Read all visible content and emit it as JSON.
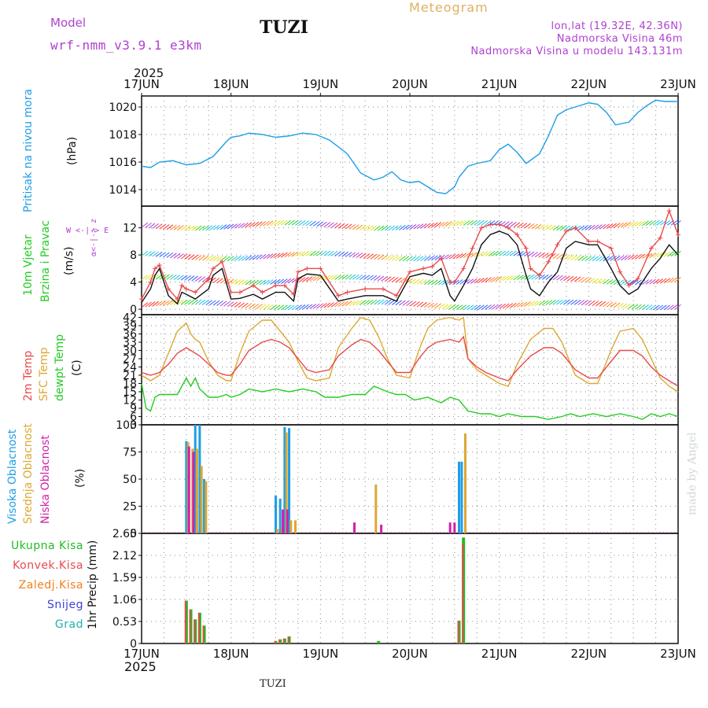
{
  "header": {
    "model_label": "Model",
    "model_name": "wrf-nmm_v3.9.1 e3km",
    "station": "TUZI",
    "meteogram": "Meteogram",
    "lonlat": "lon,lat (19.32E, 42.36N)",
    "elevation": "Nadmorska Visina 46m",
    "model_elevation": "Nadmorska Visina u modelu 143.131m",
    "year_top": "2025",
    "year_bottom": "2025",
    "footer_station": "TUZI",
    "credit": "made by Angel"
  },
  "colors": {
    "pressure": "#1e9ee6",
    "temp2m": "#e84a4a",
    "sfc": "#dca832",
    "dewpt": "#22cc22",
    "high_cloud": "#1e9ee6",
    "mid_cloud": "#dca832",
    "low_cloud": "#d020a8",
    "total_precip": "#22bb22",
    "conv_precip": "#e84a4a",
    "frozen": "#f08020",
    "snow": "#4040d8",
    "grad": "#20b0b0",
    "purple": "#b040d0",
    "wind_green": "#22cc22"
  },
  "chart_data": {
    "type": "meteogram",
    "x_start": "17JUN 2025",
    "x_ticks": [
      "17JUN",
      "18JUN",
      "19JUN",
      "20JUN",
      "21JUN",
      "22JUN",
      "23JUN"
    ],
    "panels": [
      {
        "id": "pressure",
        "type": "line",
        "ylabel": [
          "Pritisak na nivou mora",
          "(hPa)"
        ],
        "ylim": [
          1012.8,
          1020.8
        ],
        "yticks": [
          "1014",
          "1016",
          "1018",
          "1020"
        ],
        "series": [
          {
            "name": "Pritisak",
            "x": [
              0,
              0.1,
              0.2,
              0.35,
              0.5,
              0.65,
              0.8,
              0.95,
              1.0,
              1.1,
              1.2,
              1.35,
              1.5,
              1.65,
              1.8,
              1.95,
              2.1,
              2.3,
              2.45,
              2.6,
              2.7,
              2.8,
              2.9,
              3.0,
              3.1,
              3.2,
              3.3,
              3.4,
              3.5,
              3.55,
              3.65,
              3.75,
              3.9,
              4.0,
              4.1,
              4.2,
              4.3,
              4.45,
              4.55,
              4.65,
              4.75,
              4.9,
              5.0,
              5.1,
              5.2,
              5.3,
              5.45,
              5.55,
              5.65,
              5.75,
              5.85,
              5.9,
              6.0
            ],
            "values": [
              1015.7,
              1015.6,
              1016.0,
              1016.1,
              1015.8,
              1015.9,
              1016.4,
              1017.5,
              1017.8,
              1017.9,
              1018.1,
              1018.0,
              1017.8,
              1017.9,
              1018.1,
              1018.0,
              1017.6,
              1016.6,
              1015.2,
              1014.7,
              1014.9,
              1015.3,
              1014.7,
              1014.5,
              1014.6,
              1014.2,
              1013.8,
              1013.7,
              1014.2,
              1014.9,
              1015.7,
              1015.9,
              1016.1,
              1016.9,
              1017.3,
              1016.7,
              1015.9,
              1016.6,
              1017.9,
              1019.4,
              1019.8,
              1020.1,
              1020.3,
              1020.2,
              1019.6,
              1018.7,
              1018.9,
              1019.6,
              1020.1,
              1020.5,
              1020.4,
              1020.4,
              1020.4
            ]
          }
        ]
      },
      {
        "id": "wind",
        "type": "line+barbs",
        "ylabel": [
          "10m Vjetar",
          "Brzina i Pravac",
          "(m/s)"
        ],
        "ylim": [
          -0.8,
          15.2
        ],
        "yticks": [
          "0",
          "4",
          "8",
          "12"
        ],
        "compass": "W <-|-> E, N S",
        "series": [
          {
            "name": "Brzina (m/s)",
            "x": [
              0,
              0.1,
              0.15,
              0.2,
              0.3,
              0.4,
              0.45,
              0.5,
              0.6,
              0.75,
              0.8,
              0.9,
              1.0,
              1.1,
              1.25,
              1.35,
              1.5,
              1.6,
              1.7,
              1.75,
              1.85,
              2.0,
              2.2,
              2.3,
              2.5,
              2.7,
              2.85,
              3.0,
              3.15,
              3.25,
              3.35,
              3.45,
              3.5,
              3.6,
              3.7,
              3.8,
              3.9,
              4.0,
              4.1,
              4.2,
              4.3,
              4.35,
              4.45,
              4.55,
              4.65,
              4.75,
              4.85,
              5.0,
              5.1,
              5.25,
              5.35,
              5.45,
              5.55,
              5.7,
              5.8,
              5.9,
              6.0
            ],
            "values": [
              1,
              3,
              5,
              6,
              2,
              0.8,
              2.5,
              2.2,
              1.5,
              3,
              5,
              6,
              1.5,
              1.6,
              2.2,
              1.5,
              2.5,
              2.5,
              1.2,
              4.5,
              5.2,
              5,
              1.2,
              1.5,
              2,
              2,
              1.2,
              4.8,
              5.3,
              5,
              6,
              2,
              1.2,
              3.5,
              6,
              9.5,
              11,
              11.5,
              11,
              9.5,
              5,
              3,
              2,
              4,
              5.5,
              9,
              10,
              9.5,
              9.5,
              6,
              3.5,
              2.2,
              3,
              6,
              7.5,
              9.5,
              8
            ]
          },
          {
            "name": "Udari (m/s)",
            "x": [
              0,
              0.1,
              0.15,
              0.2,
              0.3,
              0.4,
              0.45,
              0.5,
              0.6,
              0.75,
              0.8,
              0.9,
              1.0,
              1.1,
              1.25,
              1.35,
              1.5,
              1.6,
              1.7,
              1.75,
              1.85,
              2.0,
              2.2,
              2.3,
              2.5,
              2.7,
              2.85,
              3.0,
              3.15,
              3.25,
              3.35,
              3.45,
              3.5,
              3.6,
              3.7,
              3.8,
              3.9,
              4.0,
              4.1,
              4.2,
              4.3,
              4.35,
              4.45,
              4.55,
              4.65,
              4.75,
              4.85,
              5.0,
              5.1,
              5.25,
              5.35,
              5.45,
              5.55,
              5.7,
              5.8,
              5.9,
              6.0
            ],
            "values": [
              1.5,
              4,
              6,
              6.5,
              3,
              1.5,
              3.5,
              3,
              2.5,
              4.5,
              6,
              7,
              2.5,
              2.5,
              3.5,
              2.5,
              3.5,
              3.5,
              2.2,
              5.5,
              6,
              6,
              2,
              2.5,
              3,
              3,
              2,
              5.5,
              6,
              6.3,
              7.5,
              4,
              4,
              6,
              9,
              12,
              12.5,
              12.5,
              12,
              11,
              9,
              6,
              5,
              7,
              9.5,
              11.5,
              12,
              10,
              10,
              9,
              5.5,
              3.5,
              4.5,
              9,
              10.5,
              14.5,
              11
            ]
          }
        ]
      },
      {
        "id": "temperature",
        "type": "line",
        "ylabel": [
          "2m Temp",
          "SFC Temp",
          "dewpt Temp",
          "(C)"
        ],
        "ylim": [
          3,
          43
        ],
        "yticks": [
          "3",
          "6",
          "9",
          "12",
          "15",
          "18",
          "21",
          "24",
          "27",
          "30",
          "33",
          "36",
          "39",
          "42"
        ],
        "series": [
          {
            "name": "2m Temp",
            "x": [
              0,
              0.1,
              0.2,
              0.3,
              0.4,
              0.5,
              0.55,
              0.6,
              0.65,
              0.75,
              0.85,
              0.95,
              1.0,
              1.1,
              1.2,
              1.35,
              1.45,
              1.55,
              1.65,
              1.75,
              1.85,
              1.95,
              2.1,
              2.2,
              2.35,
              2.45,
              2.55,
              2.65,
              2.75,
              2.85,
              3.0,
              3.1,
              3.2,
              3.3,
              3.45,
              3.55,
              3.6,
              3.65,
              3.75,
              3.85,
              4.0,
              4.1,
              4.2,
              4.35,
              4.5,
              4.6,
              4.7,
              4.85,
              5.0,
              5.1,
              5.25,
              5.35,
              5.5,
              5.6,
              5.7,
              5.8,
              5.9,
              6.0
            ],
            "values": [
              22,
              21,
              22,
              25,
              29,
              31,
              30,
              29,
              28,
              25,
              22,
              21,
              21,
              25,
              30,
              33,
              34,
              33,
              31,
              27,
              23,
              22,
              23,
              28,
              32,
              34,
              33,
              30,
              26,
              22,
              22,
              27,
              31,
              33,
              34,
              33,
              35,
              27,
              24,
              22,
              20,
              19,
              23,
              28,
              31,
              31,
              29,
              23,
              20,
              20,
              26,
              30,
              30,
              28,
              24,
              21,
              19,
              17
            ]
          },
          {
            "name": "SFC Temp",
            "x": [
              0,
              0.1,
              0.2,
              0.3,
              0.4,
              0.5,
              0.55,
              0.6,
              0.65,
              0.75,
              0.85,
              0.95,
              1.0,
              1.1,
              1.2,
              1.35,
              1.45,
              1.55,
              1.65,
              1.75,
              1.85,
              1.95,
              2.1,
              2.2,
              2.35,
              2.45,
              2.55,
              2.65,
              2.75,
              2.85,
              3.0,
              3.1,
              3.2,
              3.3,
              3.45,
              3.55,
              3.6,
              3.65,
              3.75,
              3.85,
              4.0,
              4.1,
              4.2,
              4.35,
              4.5,
              4.6,
              4.7,
              4.85,
              5.0,
              5.1,
              5.25,
              5.35,
              5.5,
              5.6,
              5.7,
              5.8,
              5.9,
              6.0
            ],
            "values": [
              21,
              19,
              21,
              29,
              37,
              40,
              36,
              34,
              33,
              26,
              21,
              19,
              19,
              29,
              37,
              41,
              41,
              37,
              33,
              26,
              20,
              19,
              20,
              31,
              38,
              42,
              41,
              35,
              27,
              21,
              20,
              30,
              38,
              41,
              42,
              41,
              42,
              27,
              23,
              21,
              18,
              17,
              25,
              34,
              38,
              38,
              33,
              21,
              18,
              18,
              30,
              37,
              38,
              34,
              27,
              20,
              17,
              15
            ]
          },
          {
            "name": "dewpt Temp",
            "x": [
              0,
              0.05,
              0.1,
              0.15,
              0.2,
              0.3,
              0.4,
              0.5,
              0.55,
              0.6,
              0.65,
              0.75,
              0.85,
              0.95,
              1.0,
              1.1,
              1.2,
              1.35,
              1.5,
              1.65,
              1.8,
              1.95,
              2.05,
              2.2,
              2.35,
              2.5,
              2.6,
              2.75,
              2.85,
              2.95,
              3.05,
              3.2,
              3.35,
              3.45,
              3.55,
              3.65,
              3.8,
              3.9,
              4.0,
              4.1,
              4.25,
              4.4,
              4.55,
              4.7,
              4.8,
              4.9,
              5.05,
              5.2,
              5.35,
              5.5,
              5.6,
              5.7,
              5.8,
              5.9,
              6.0
            ],
            "values": [
              18,
              9,
              8,
              13,
              14,
              14,
              14,
              20,
              17,
              20,
              16,
              13,
              13,
              14,
              13,
              14,
              16,
              15,
              16,
              15,
              16,
              15,
              13,
              13,
              14,
              14,
              17,
              15,
              14,
              14,
              12,
              13,
              11,
              13,
              12,
              8,
              7,
              7,
              6,
              7,
              6,
              6,
              5,
              6,
              7,
              6,
              7,
              6,
              7,
              6,
              5,
              7,
              6,
              7,
              6
            ]
          }
        ]
      },
      {
        "id": "clouds",
        "type": "bar",
        "ylabel": [
          "Visoka Oblacnost",
          "Srednja Oblacnost",
          "Niska Oblacnost",
          "(%)"
        ],
        "ylim": [
          0,
          100
        ],
        "yticks": [
          "0",
          "25",
          "50",
          "75",
          "100"
        ],
        "series": [
          {
            "name": "Visoka Oblacnost",
            "x": [
              0.5,
              0.55,
              0.6,
              0.65,
              0.7,
              1.5,
              1.55,
              1.6,
              1.65,
              3.55,
              3.58
            ],
            "values": [
              85,
              0,
              100,
              100,
              50,
              35,
              32,
              98,
              97,
              66,
              66
            ]
          },
          {
            "name": "Srednja Oblacnost",
            "x": [
              0.52,
              0.57,
              0.62,
              0.67,
              0.72,
              1.52,
              1.57,
              1.62,
              1.67,
              1.72,
              2.62,
              3.62
            ],
            "values": [
              84,
              78,
              78,
              62,
              48,
              4,
              6,
              93,
              12,
              12,
              45,
              92
            ]
          },
          {
            "name": "Niska Oblacnost",
            "x": [
              0.53,
              0.58,
              1.58,
              1.63,
              2.38,
              2.68,
              3.45,
              3.5
            ],
            "values": [
              80,
              75,
              22,
              22,
              10,
              8,
              10,
              10
            ]
          }
        ]
      },
      {
        "id": "precip",
        "type": "bar",
        "ylabel": [
          "1hr Precip (mm)"
        ],
        "legend": [
          "Ukupna Kisa",
          "Konvek.Kisa",
          "Zaledj.Kisa",
          "Snijeg",
          "Grad"
        ],
        "ylim": [
          0,
          2.65
        ],
        "yticks": [
          "0",
          "0.53",
          "1.06",
          "1.59",
          "2.12",
          "2.65"
        ],
        "series": [
          {
            "name": "Ukupna Kisa",
            "x": [
              0.5,
              0.55,
              0.6,
              0.65,
              0.7,
              1.5,
              1.55,
              1.6,
              1.65,
              2.65,
              3.55,
              3.6
            ],
            "values": [
              1.03,
              0.82,
              0.58,
              0.74,
              0.43,
              0.06,
              0.1,
              0.12,
              0.17,
              0.06,
              0.55,
              2.55
            ]
          },
          {
            "name": "Konvek.Kisa",
            "x": [
              0.5,
              0.55,
              0.6,
              0.65,
              0.7,
              1.5,
              1.55,
              1.6,
              1.65,
              3.55,
              3.6
            ],
            "values": [
              1.03,
              0.82,
              0.58,
              0.74,
              0.43,
              0.06,
              0.1,
              0.12,
              0.17,
              0.55,
              2.4
            ]
          }
        ]
      }
    ]
  }
}
